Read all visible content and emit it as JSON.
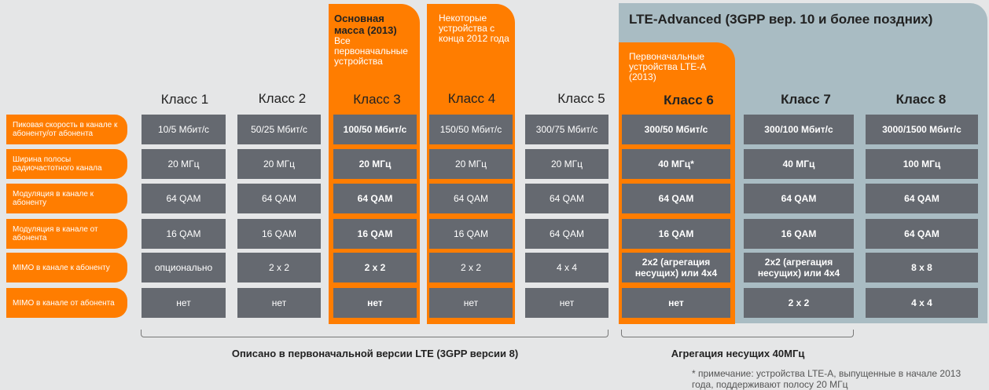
{
  "lte_advanced_title": "LTE-Advanced (3GPP вер. 10 и более поздних)",
  "highlights": [
    {
      "id": "class3",
      "bold": "Основная масса (2013)",
      "text": "Все первоначальные устройства"
    },
    {
      "id": "class4",
      "bold": "",
      "text": "Некоторые устройства с конца 2012 года"
    },
    {
      "id": "class6",
      "bold": "",
      "text": "Первоначальные устройства LTE-A (2013)"
    }
  ],
  "row_labels": [
    "Пиковая скорость в канале к абоненту/от абонента",
    "Ширина полосы радиочастотного канала",
    "Модуляция в канале к абоненту",
    "Модуляция в канале от абонента",
    "MIMO в канале к абоненту",
    "MIMO в канале от абонента"
  ],
  "classes": [
    {
      "name": "Класс 1",
      "values": [
        "10/5 Мбит/с",
        "20 МГц",
        "64 QAM",
        "16 QAM",
        "опционально",
        "нет"
      ]
    },
    {
      "name": "Класс 2",
      "values": [
        "50/25 Мбит/с",
        "20 МГц",
        "64 QAM",
        "16 QAM",
        "2 x 2",
        "нет"
      ]
    },
    {
      "name": "Класс 3",
      "values": [
        "100/50 Мбит/с",
        "20 МГц",
        "64 QAM",
        "16 QAM",
        "2 x 2",
        "нет"
      ]
    },
    {
      "name": "Класс 4",
      "values": [
        "150/50 Мбит/с",
        "20 МГц",
        "64 QAM",
        "16 QAM",
        "2 x 2",
        "нет"
      ]
    },
    {
      "name": "Класс 5",
      "values": [
        "300/75 Мбит/с",
        "20 МГц",
        "64 QAM",
        "64 QAM",
        "4 x 4",
        "нет"
      ]
    },
    {
      "name": "Класс 6",
      "values": [
        "300/50 Мбит/с",
        "40 МГц*",
        "64 QAM",
        "16 QAM",
        "2x2 (агрегация несущих) или 4x4",
        "нет"
      ]
    },
    {
      "name": "Класс 7",
      "values": [
        "300/100 Мбит/с",
        "40 МГц",
        "64 QAM",
        "16 QAM",
        "2x2 (агрегация несущих) или 4x4",
        "2 x 2"
      ]
    },
    {
      "name": "Класс 8",
      "values": [
        "3000/1500 Мбит/с",
        "100 МГц",
        "64 QAM",
        "64 QAM",
        "8 x 8",
        "4 x 4"
      ]
    }
  ],
  "brackets": {
    "lte_label": "Описано в первоначальной версии LTE (3GPP версии 8)",
    "ca_label": "Агрегация несущих 40МГц"
  },
  "footnote": "* примечание: устройства LTE-A, выпущенные в начале 2013 года, поддерживают полосу 20 МГц",
  "colors": {
    "orange": "#ff7d00",
    "cell_gray": "#656970",
    "lte_panel": "#a9bcc3",
    "background": "#e5e6e7"
  }
}
